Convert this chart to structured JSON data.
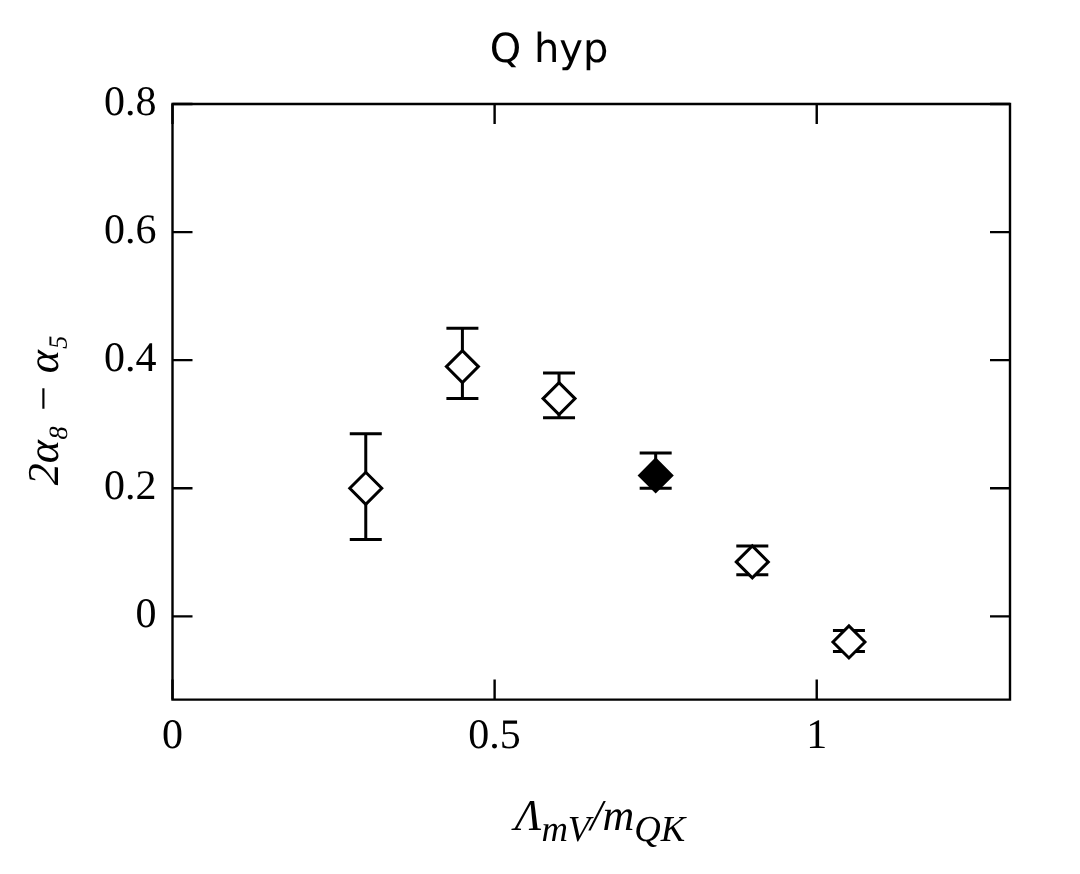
{
  "chart_data": {
    "type": "scatter",
    "title": "Q hyp",
    "xlabel": "Λ$_{mV}$/m$_{QK}$",
    "ylabel": "2α₈ − α₅",
    "xlim": [
      0,
      1.3
    ],
    "xticks": [
      0,
      0.5,
      1
    ],
    "ylim": [
      -0.13,
      0.8
    ],
    "yticks": [
      0,
      0.2,
      0.4,
      0.6,
      0.8
    ],
    "marker": "diamond",
    "series": [
      {
        "color": "#000000",
        "colors": [
          "#ffffff",
          "#ffffff",
          "#ffffff",
          "#000000",
          "#ffffff",
          "#ffffff"
        ],
        "x": [
          0.3,
          0.45,
          0.6,
          0.75,
          0.9,
          1.05
        ],
        "values": [
          0.2,
          0.39,
          0.34,
          0.22,
          0.085,
          -0.04
        ],
        "errors": [
          [
            0.12,
            0.285
          ],
          [
            0.34,
            0.45
          ],
          [
            0.31,
            0.38
          ],
          [
            0.2,
            0.255
          ],
          [
            0.065,
            0.11
          ],
          [
            -0.055,
            -0.022
          ]
        ]
      }
    ]
  }
}
